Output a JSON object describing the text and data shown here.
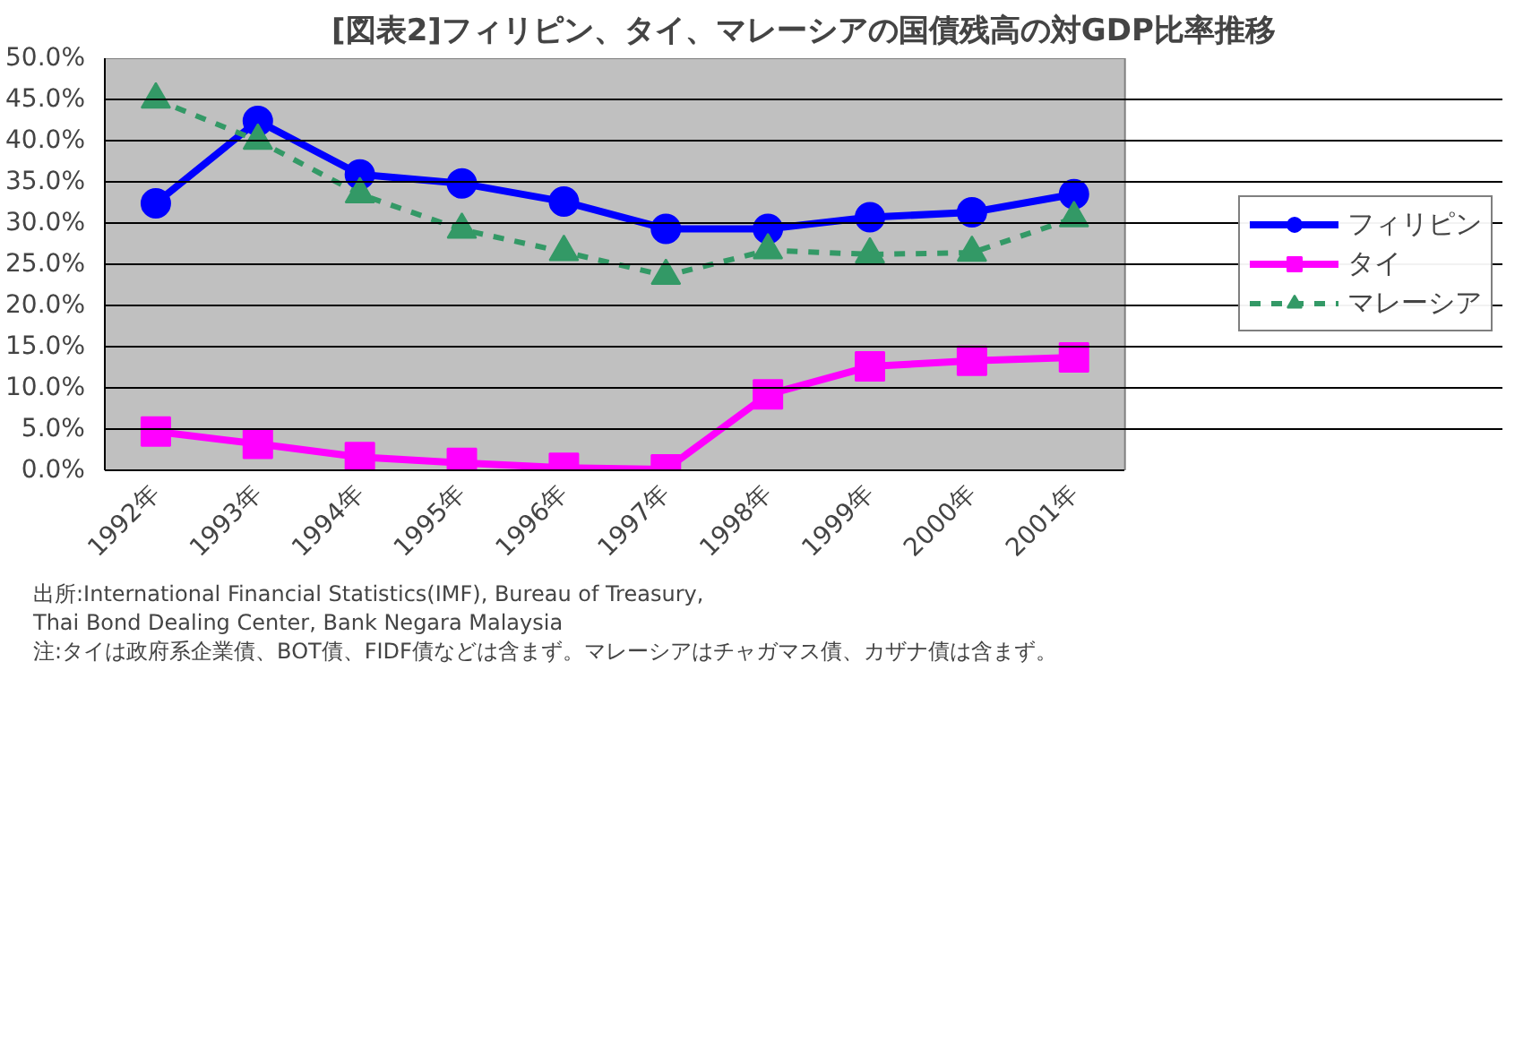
{
  "chart_data": {
    "type": "line",
    "title": "[図表2]フィリピン、タイ、マレーシアの国債残高の対GDP比率推移",
    "categories": [
      "1992年",
      "1993年",
      "1994年",
      "1995年",
      "1996年",
      "1997年",
      "1998年",
      "1999年",
      "2000年",
      "2001年"
    ],
    "series": [
      {
        "name": "フィリピン",
        "color": "#0000ff",
        "marker": "circle",
        "line_style": "solid",
        "values": [
          32.4,
          42.4,
          35.9,
          34.8,
          32.6,
          29.3,
          29.3,
          30.7,
          31.3,
          33.5
        ]
      },
      {
        "name": "タイ",
        "color": "#ff00ff",
        "marker": "square",
        "line_style": "solid",
        "values": [
          4.7,
          3.2,
          1.6,
          0.9,
          0.3,
          0.1,
          9.2,
          12.6,
          13.3,
          13.7
        ]
      },
      {
        "name": "マレーシア",
        "color": "#339966",
        "marker": "triangle",
        "line_style": "dashed",
        "values": [
          45.0,
          40.0,
          33.5,
          29.2,
          26.5,
          23.6,
          26.7,
          26.2,
          26.4,
          30.6
        ]
      }
    ],
    "ylim": [
      0,
      50
    ],
    "yticks": [
      {
        "value": 0,
        "label": "0.0%"
      },
      {
        "value": 5,
        "label": "5.0%"
      },
      {
        "value": 10,
        "label": "10.0%"
      },
      {
        "value": 15,
        "label": "15.0%"
      },
      {
        "value": 20,
        "label": "20.0%"
      },
      {
        "value": 25,
        "label": "25.0%"
      },
      {
        "value": 30,
        "label": "30.0%"
      },
      {
        "value": 35,
        "label": "35.0%"
      },
      {
        "value": 40,
        "label": "40.0%"
      },
      {
        "value": 45,
        "label": "45.0%"
      },
      {
        "value": 50,
        "label": "50.0%"
      }
    ],
    "grid": "y",
    "legend": "right",
    "annotations": [
      "出所:International Financial Statistics(IMF), Bureau of Treasury,\n      Thai Bond Dealing Center, Bank Negara Malaysia",
      "注:タイは政府系企業債、BOT債、FIDF債などは含まず。マレーシアはチャガマス債、カザナ債は含まず。"
    ]
  }
}
